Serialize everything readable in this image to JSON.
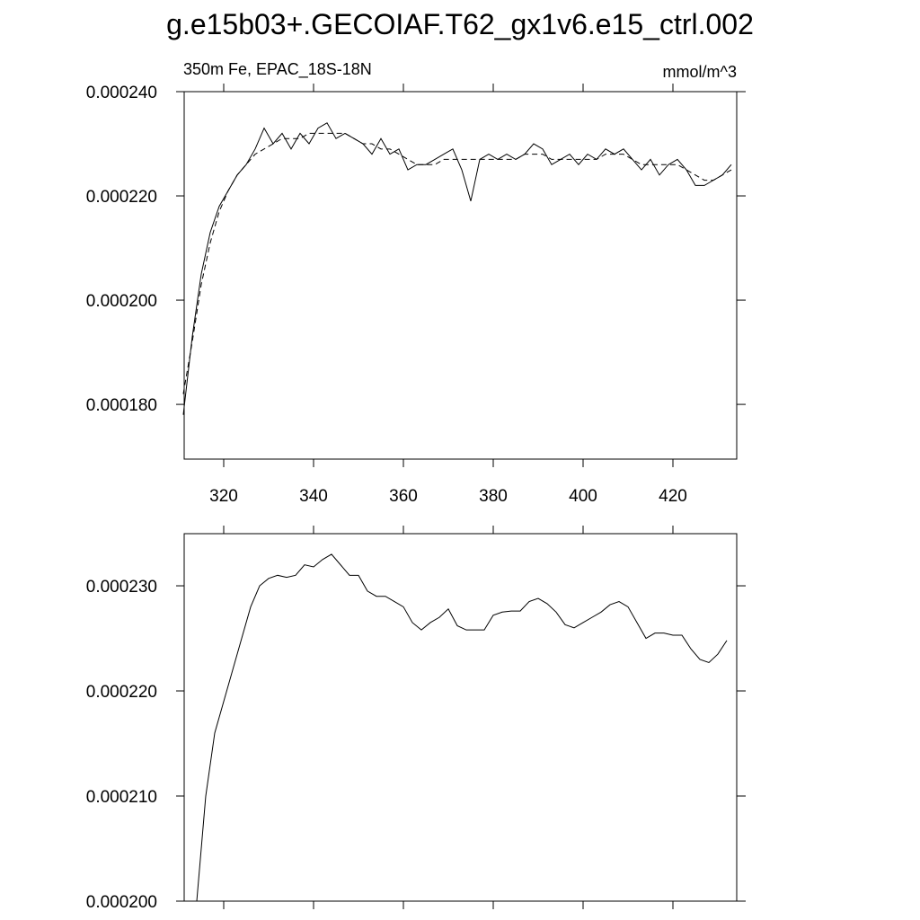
{
  "chart_data": [
    {
      "type": "line",
      "title": "g.e15b03+.GECOIAF.T62_gx1v6.e15_ctrl.002",
      "subtitle": "350m Fe, EPAC_18S-18N",
      "units": "mmol/m^3",
      "x": [
        311,
        313,
        315,
        317,
        319,
        321,
        323,
        325,
        327,
        329,
        331,
        333,
        335,
        337,
        339,
        341,
        343,
        345,
        347,
        349,
        351,
        353,
        355,
        357,
        359,
        361,
        363,
        365,
        367,
        369,
        371,
        373,
        375,
        377,
        379,
        381,
        383,
        385,
        387,
        389,
        391,
        393,
        395,
        397,
        399,
        401,
        403,
        405,
        407,
        409,
        411,
        413,
        415,
        417,
        419,
        421,
        423,
        425,
        427,
        429,
        431,
        433
      ],
      "series": [
        {
          "color": "#000000",
          "style": "solid",
          "values": [
            0.000178,
            0.000193,
            0.000205,
            0.000213,
            0.000218,
            0.000221,
            0.000224,
            0.000226,
            0.000229,
            0.000233,
            0.00023,
            0.000232,
            0.000229,
            0.000232,
            0.00023,
            0.000233,
            0.000234,
            0.000231,
            0.000232,
            0.000231,
            0.00023,
            0.000228,
            0.000231,
            0.000228,
            0.000229,
            0.000225,
            0.000226,
            0.000226,
            0.000227,
            0.000228,
            0.000229,
            0.000225,
            0.000219,
            0.000227,
            0.000228,
            0.000227,
            0.000228,
            0.000227,
            0.000228,
            0.00023,
            0.000229,
            0.000226,
            0.000227,
            0.000228,
            0.000226,
            0.000228,
            0.000227,
            0.000229,
            0.000228,
            0.000229,
            0.000227,
            0.000225,
            0.000227,
            0.000224,
            0.000226,
            0.000227,
            0.000225,
            0.000222,
            0.000222,
            0.000223,
            0.000224,
            0.000226
          ]
        },
        {
          "color": "#000000",
          "style": "dashed",
          "values": [
            0.000182,
            0.000192,
            0.000203,
            0.000211,
            0.000217,
            0.000221,
            0.000224,
            0.000226,
            0.000228,
            0.000229,
            0.00023,
            0.000231,
            0.000231,
            0.000231,
            0.000232,
            0.000232,
            0.000232,
            0.000232,
            0.000232,
            0.000231,
            0.00023,
            0.00023,
            0.000229,
            0.000229,
            0.000228,
            0.000227,
            0.000226,
            0.000226,
            0.000226,
            0.000227,
            0.000227,
            0.000227,
            0.000227,
            0.000227,
            0.000227,
            0.000227,
            0.000227,
            0.000227,
            0.000228,
            0.000228,
            0.000228,
            0.000227,
            0.000227,
            0.000227,
            0.000227,
            0.000227,
            0.000227,
            0.000228,
            0.000228,
            0.000228,
            0.000227,
            0.000226,
            0.000226,
            0.000226,
            0.000226,
            0.000226,
            0.000225,
            0.000224,
            0.000223,
            0.000223,
            0.000224,
            0.000225
          ]
        }
      ],
      "xlim": [
        311.2,
        434.2
      ],
      "xticks": [
        320,
        340,
        360,
        380,
        400,
        420
      ],
      "xtick_labels": true,
      "ylim": [
        0.0001695,
        0.00024
      ],
      "yticks": [
        {
          "value": 0.00018,
          "label": "0.000180"
        },
        {
          "value": 0.0002,
          "label": "0.000200"
        },
        {
          "value": 0.00022,
          "label": "0.000220"
        },
        {
          "value": 0.00024,
          "label": "0.000240"
        }
      ]
    },
    {
      "type": "line",
      "x": [
        314,
        316,
        318,
        320,
        322,
        324,
        326,
        328,
        330,
        332,
        334,
        336,
        338,
        340,
        342,
        344,
        346,
        348,
        350,
        352,
        354,
        356,
        358,
        360,
        362,
        364,
        366,
        368,
        370,
        372,
        374,
        376,
        378,
        380,
        382,
        384,
        386,
        388,
        390,
        392,
        394,
        396,
        398,
        400,
        402,
        404,
        406,
        408,
        410,
        412,
        414,
        416,
        418,
        420,
        422,
        424,
        426,
        428,
        430,
        432
      ],
      "series": [
        {
          "color": "#000000",
          "style": "solid",
          "values": [
            0.0002,
            0.00021,
            0.000216,
            0.000219,
            0.000222,
            0.000225,
            0.000228,
            0.00023,
            0.0002307,
            0.000231,
            0.0002308,
            0.000231,
            0.000232,
            0.0002318,
            0.0002325,
            0.000233,
            0.000232,
            0.000231,
            0.000231,
            0.0002295,
            0.000229,
            0.000229,
            0.0002285,
            0.000228,
            0.0002265,
            0.0002258,
            0.0002265,
            0.000227,
            0.0002278,
            0.0002262,
            0.0002258,
            0.0002258,
            0.0002258,
            0.0002272,
            0.0002275,
            0.0002276,
            0.0002276,
            0.0002285,
            0.0002288,
            0.0002283,
            0.0002275,
            0.0002263,
            0.000226,
            0.0002265,
            0.000227,
            0.0002275,
            0.0002282,
            0.0002285,
            0.000228,
            0.0002265,
            0.000225,
            0.0002255,
            0.0002255,
            0.0002253,
            0.0002253,
            0.000224,
            0.000223,
            0.0002227,
            0.0002235,
            0.0002248
          ]
        }
      ],
      "xlim": [
        311.2,
        434.2
      ],
      "xticks": [
        320,
        340,
        360,
        380,
        400,
        420
      ],
      "xtick_labels": false,
      "ylim": [
        0.0002,
        0.00023496
      ],
      "yticks": [
        {
          "value": 0.0002,
          "label": "0.000200"
        },
        {
          "value": 0.00021,
          "label": "0.000210"
        },
        {
          "value": 0.00022,
          "label": "0.000220"
        },
        {
          "value": 0.00023,
          "label": "0.000230"
        }
      ]
    }
  ]
}
